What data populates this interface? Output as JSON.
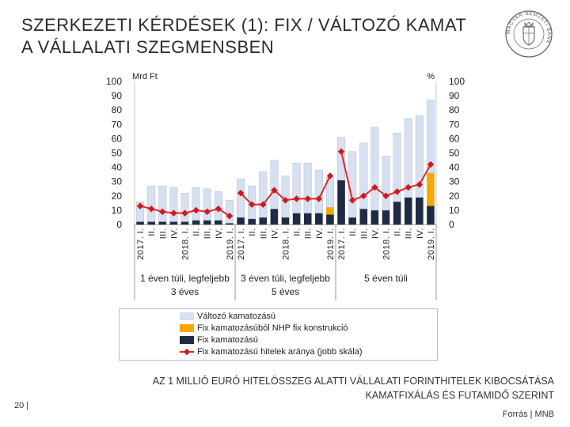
{
  "header": {
    "title_line1": "SZERKEZETI KÉRDÉSEK (1): FIX / VÁLTOZÓ KAMAT",
    "title_line2": "A VÁLLALATI SZEGMENSBEN"
  },
  "logo": {
    "name": "MNB seal",
    "text": "MAGYAR NEMZETI BANK"
  },
  "colors": {
    "variable": "#d6e0f0",
    "nhp": "#f5a800",
    "fixed": "#1f2a44",
    "share_line": "#e3242b",
    "share_marker": "#d0181e"
  },
  "chart_data": {
    "type": "bar",
    "stacked": true,
    "left_axis_label": "Mrd Ft",
    "right_axis_label": "%",
    "ylim": [
      0,
      100
    ],
    "y2lim": [
      0,
      100
    ],
    "yticks": [
      0,
      10,
      20,
      30,
      40,
      50,
      60,
      70,
      80,
      90,
      100
    ],
    "groups": [
      {
        "label": "1 éven túli, legfeljebb\n3 éves",
        "categories": [
          "2017. I.",
          "II.",
          "III.",
          "IV.",
          "2018. I.",
          "II.",
          "III.",
          "IV.",
          "2019. I."
        ]
      },
      {
        "label": "3 éven túli, legfeljebb\n5 éves",
        "categories": [
          "2017. I.",
          "II.",
          "III.",
          "IV.",
          "2018. I.",
          "II.",
          "III.",
          "IV.",
          "2019. I."
        ]
      },
      {
        "label": "5 éven túli",
        "categories": [
          "2017. I.",
          "II.",
          "III.",
          "IV.",
          "2018. I.",
          "II.",
          "III.",
          "IV.",
          "2019. I."
        ]
      }
    ],
    "series": [
      {
        "name": "Változó kamatozású",
        "key": "variable",
        "values": [
          14,
          25,
          25,
          24,
          20,
          23,
          22,
          20,
          16,
          27,
          23,
          32,
          34,
          29,
          35,
          35,
          30,
          21,
          30,
          46,
          46,
          58,
          38,
          48,
          55,
          57,
          51
        ]
      },
      {
        "name": "Fix kamatozásúból NHP fix konstrukció",
        "key": "nhp",
        "values": [
          0,
          0,
          0,
          0,
          0,
          0,
          0,
          0,
          0,
          0,
          0,
          0,
          0,
          0,
          0,
          0,
          0,
          5,
          0,
          0,
          0,
          0,
          0,
          0,
          0,
          0,
          23
        ]
      },
      {
        "name": "Fix kamatozású",
        "key": "fixed",
        "values": [
          2,
          2,
          2,
          2,
          2,
          3,
          3,
          3,
          1,
          5,
          4,
          5,
          11,
          5,
          8,
          8,
          8,
          7,
          31,
          5,
          11,
          10,
          10,
          16,
          19,
          19,
          13
        ]
      },
      {
        "name": "Fix kamatozású hitelek aránya (jobb skála)",
        "key": "share",
        "axis": "right",
        "values": [
          13,
          11,
          9,
          8,
          8,
          10,
          9,
          11,
          6,
          22,
          14,
          14,
          24,
          17,
          18,
          18,
          18,
          34,
          51,
          17,
          20,
          26,
          20,
          23,
          26,
          28,
          42
        ]
      }
    ],
    "legend": [
      "Változó kamatozású",
      "Fix kamatozásúból NHP fix konstrukció",
      "Fix kamatozású",
      "Fix kamatozású hitelek aránya (jobb skála)"
    ]
  },
  "footer": {
    "caption_line1": "AZ 1 MILLIÓ EURÓ HITELÖSSZEG ALATTI VÁLLALATI FORINTHITELEK KIBOCSÁTÁSA",
    "caption_line2": "KAMATFIXÁLÁS ÉS FUTAMIDŐ SZERINT",
    "source": "Forrás | MNB",
    "page_number": "20 |"
  }
}
